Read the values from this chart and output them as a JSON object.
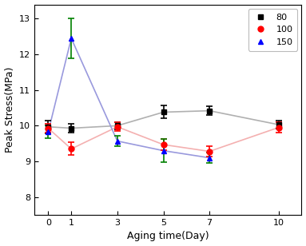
{
  "x": [
    0,
    1,
    3,
    5,
    7,
    10
  ],
  "series": [
    {
      "label": "80",
      "line_color": "#b0b0b0",
      "marker": "s",
      "marker_color": "black",
      "y": [
        9.97,
        9.93,
        10.0,
        10.38,
        10.42,
        10.03
      ],
      "yerr": [
        0.18,
        0.12,
        0.1,
        0.18,
        0.12,
        0.12
      ],
      "err_color": "black"
    },
    {
      "label": "100",
      "line_color": "#f4b0b0",
      "marker": "o",
      "marker_color": "red",
      "y": [
        9.93,
        9.35,
        9.97,
        9.47,
        9.28,
        9.95
      ],
      "yerr": [
        0.12,
        0.18,
        0.12,
        0.15,
        0.15,
        0.15
      ],
      "err_color": "red"
    },
    {
      "label": "150",
      "line_color": "#9999dd",
      "marker": "^",
      "marker_color": "blue",
      "y": [
        9.83,
        12.45,
        9.57,
        9.3,
        9.1,
        null
      ],
      "yerr": [
        0.18,
        0.55,
        0.15,
        0.32,
        0.15,
        null
      ],
      "err_color": "green"
    }
  ],
  "xlabel": "Aging time(Day)",
  "ylabel": "Peak Stress(MPa)",
  "ylim": [
    7.5,
    13.4
  ],
  "yticks": [
    8,
    9,
    10,
    11,
    12,
    13
  ],
  "xticks": [
    0,
    1,
    3,
    5,
    7,
    10
  ],
  "legend_loc": "upper right",
  "bg_color": "#ffffff"
}
